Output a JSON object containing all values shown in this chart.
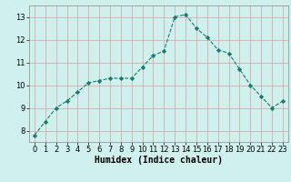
{
  "x": [
    0,
    1,
    2,
    3,
    4,
    5,
    6,
    7,
    8,
    9,
    10,
    11,
    12,
    13,
    14,
    15,
    16,
    17,
    18,
    19,
    20,
    21,
    22,
    23
  ],
  "y": [
    7.8,
    8.4,
    9.0,
    9.3,
    9.7,
    10.1,
    10.2,
    10.3,
    10.3,
    10.3,
    10.8,
    11.3,
    11.5,
    13.0,
    13.1,
    12.5,
    12.1,
    11.55,
    11.4,
    10.7,
    10.0,
    9.5,
    9.0,
    9.3
  ],
  "line_color": "#1a7a6e",
  "marker": "D",
  "markersize": 2.2,
  "bg_color": "#cff0ec",
  "grid_color": "#d4a0a0",
  "xlabel": "Humidex (Indice chaleur)",
  "xlim": [
    -0.5,
    23.5
  ],
  "ylim": [
    7.5,
    13.5
  ],
  "yticks": [
    8,
    9,
    10,
    11,
    12,
    13
  ],
  "xticks": [
    0,
    1,
    2,
    3,
    4,
    5,
    6,
    7,
    8,
    9,
    10,
    11,
    12,
    13,
    14,
    15,
    16,
    17,
    18,
    19,
    20,
    21,
    22,
    23
  ],
  "label_fontsize": 7,
  "tick_fontsize": 6
}
